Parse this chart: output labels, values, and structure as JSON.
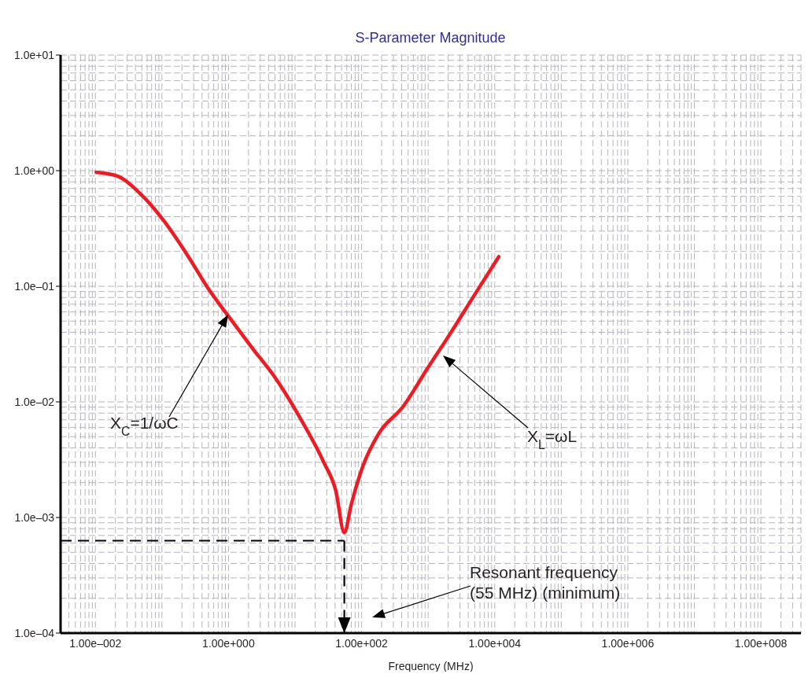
{
  "chart_data": {
    "type": "line",
    "title": "S-Parameter Magnitude",
    "xlabel": "Frequency (MHz)",
    "x": [
      0.0103,
      0.021,
      0.049,
      0.11,
      0.25,
      0.5,
      1.0,
      2.3,
      5.1,
      12,
      27,
      41,
      55,
      70,
      105,
      180,
      420,
      950,
      2150,
      4900,
      11500
    ],
    "series": [
      {
        "color": "#ed1c24",
        "values": [
          0.97,
          0.9,
          0.62,
          0.36,
          0.18,
          0.095,
          0.055,
          0.029,
          0.016,
          0.0072,
          0.003,
          0.0017,
          0.00074,
          0.0013,
          0.0028,
          0.0053,
          0.0091,
          0.019,
          0.039,
          0.083,
          0.18
        ]
      }
    ],
    "log": "xy",
    "xlim": [
      0.003,
      400000000
    ],
    "ylim": [
      0.0001,
      10
    ],
    "xticks": [
      {
        "value": 0.01,
        "label": "1.00e–002"
      },
      {
        "value": 1,
        "label": "1.00e+000"
      },
      {
        "value": 100,
        "label": "1.00e+002"
      },
      {
        "value": 10000,
        "label": "1.00e+004"
      },
      {
        "value": 1000000,
        "label": "1.00e+006"
      },
      {
        "value": 100000000,
        "label": "1.00e+008"
      }
    ],
    "yticks": [
      {
        "value": 0.0001,
        "label": "1.0e–04"
      },
      {
        "value": 0.001,
        "label": "1.0e–03"
      },
      {
        "value": 0.01,
        "label": "1.0e–02"
      },
      {
        "value": 0.1,
        "label": "1.0e–01"
      },
      {
        "value": 1,
        "label": "1.0e+00"
      },
      {
        "value": 10,
        "label": "1.0e+01"
      }
    ],
    "grid": true,
    "legend": false,
    "marker": "none",
    "line_style": "solid",
    "ref_lines": [
      {
        "axis": "y",
        "value": 0.00063,
        "color": "#000000",
        "line_style": "dashed"
      },
      {
        "axis": "x",
        "value": 55,
        "color": "#000000",
        "line_style": "dashed"
      }
    ],
    "annotations": [
      "X$_{C}$=1/ωC",
      "X$_{L}$=ωL",
      "Resonant frequency\n(55 MHz) (minimum)"
    ]
  }
}
